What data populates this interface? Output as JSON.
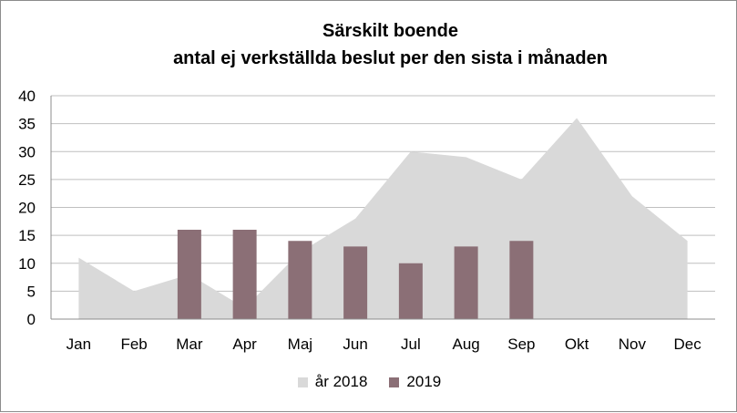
{
  "chart_data": {
    "type": "bar",
    "title": "Särskilt boende",
    "subtitle": "antal ej verkställda beslut per den sista i månaden",
    "categories": [
      "Jan",
      "Feb",
      "Mar",
      "Apr",
      "Maj",
      "Jun",
      "Jul",
      "Aug",
      "Sep",
      "Okt",
      "Nov",
      "Dec"
    ],
    "ylim": [
      0,
      40
    ],
    "yticks": [
      0,
      5,
      10,
      15,
      20,
      25,
      30,
      35,
      40
    ],
    "grid": true,
    "legend_position": "bottom",
    "series": [
      {
        "name": "år 2018",
        "kind": "area",
        "color": "#d9d9d9",
        "values": [
          11,
          5,
          8,
          2,
          12,
          18,
          30,
          29,
          25,
          36,
          22,
          14
        ]
      },
      {
        "name": "2019",
        "kind": "bar",
        "color": "#8b6f76",
        "values": [
          null,
          null,
          16,
          16,
          14,
          13,
          10,
          13,
          14,
          null,
          null,
          null
        ]
      }
    ]
  }
}
